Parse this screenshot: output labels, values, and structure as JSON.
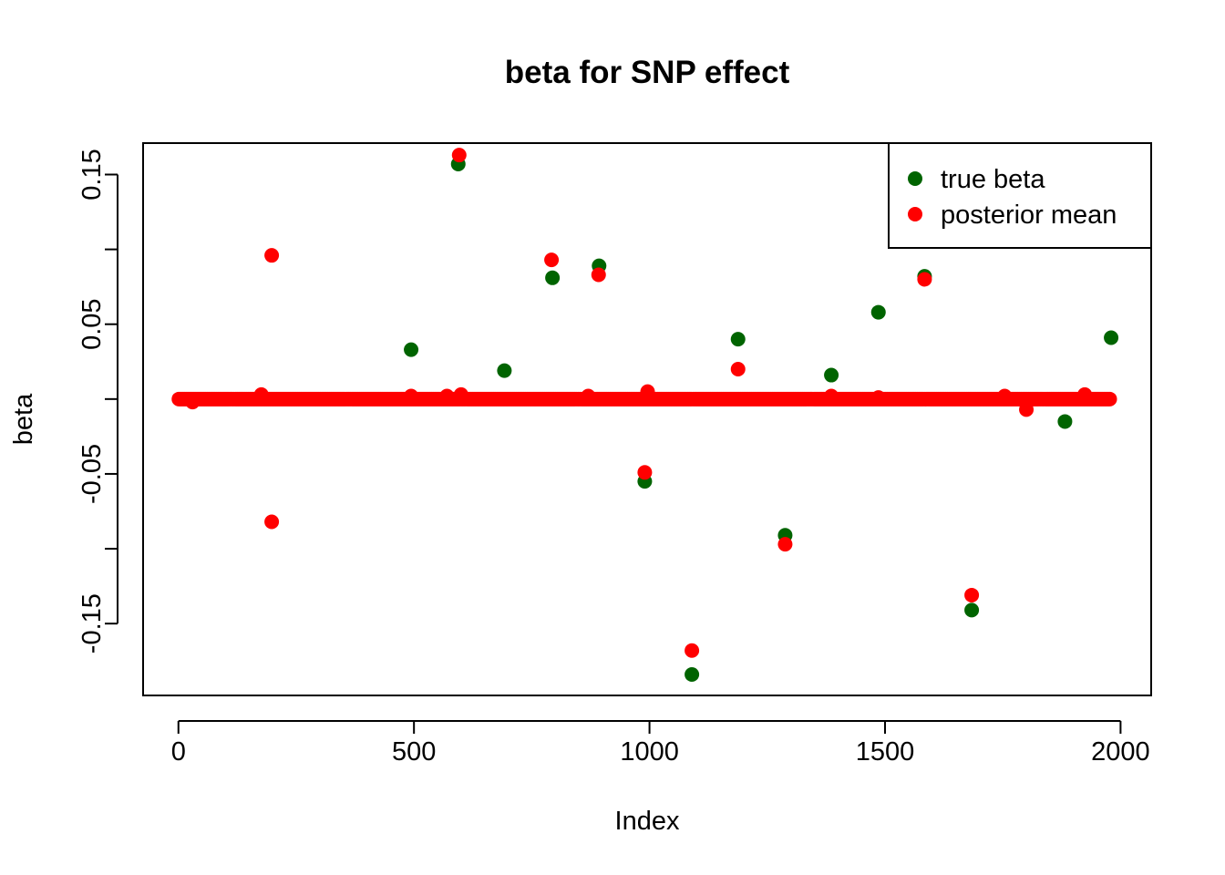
{
  "chart_data": {
    "type": "scatter",
    "title": "beta for SNP effect",
    "xlabel": "Index",
    "ylabel": "beta",
    "xlim": [
      -75,
      2065
    ],
    "ylim": [
      -0.198,
      0.171
    ],
    "x_ticks": [
      0,
      500,
      1000,
      1500,
      2000
    ],
    "x_tick_labels": [
      "0",
      "500",
      "1000",
      "1500",
      "2000"
    ],
    "y_ticks": [
      -0.15,
      -0.1,
      -0.05,
      0.0,
      0.05,
      0.1,
      0.15
    ],
    "y_tick_labels": [
      "-0.15",
      "",
      "-0.05",
      "",
      "0.05",
      "",
      "0.15"
    ],
    "legend_position": "top-right",
    "baseline": {
      "x_start": 1,
      "x_end": 1980,
      "value": 0.0
    },
    "series": [
      {
        "name": "true beta",
        "color": "#006400",
        "x": [
          494,
          594,
          692,
          794,
          893,
          990,
          1090,
          1188,
          1288,
          1386,
          1486,
          1584,
          1684,
          1882,
          1980
        ],
        "y": [
          0.033,
          0.157,
          0.019,
          0.081,
          0.089,
          -0.055,
          -0.184,
          0.04,
          -0.091,
          0.016,
          0.058,
          0.082,
          -0.141,
          -0.015,
          0.041
        ]
      },
      {
        "name": "posterior mean",
        "color": "#ff0000",
        "x": [
          198,
          198,
          596,
          792,
          892,
          990,
          1090,
          1188,
          1288,
          1584,
          1684,
          1800,
          176,
          30,
          996,
          1924,
          600,
          870,
          570,
          1754,
          494,
          1386,
          1486
        ],
        "y": [
          0.096,
          -0.082,
          0.163,
          0.093,
          0.083,
          -0.049,
          -0.168,
          0.02,
          -0.097,
          0.08,
          -0.131,
          -0.007,
          0.003,
          -0.002,
          0.005,
          0.003,
          0.003,
          0.002,
          0.002,
          0.002,
          0.002,
          0.002,
          0.001
        ]
      }
    ]
  }
}
